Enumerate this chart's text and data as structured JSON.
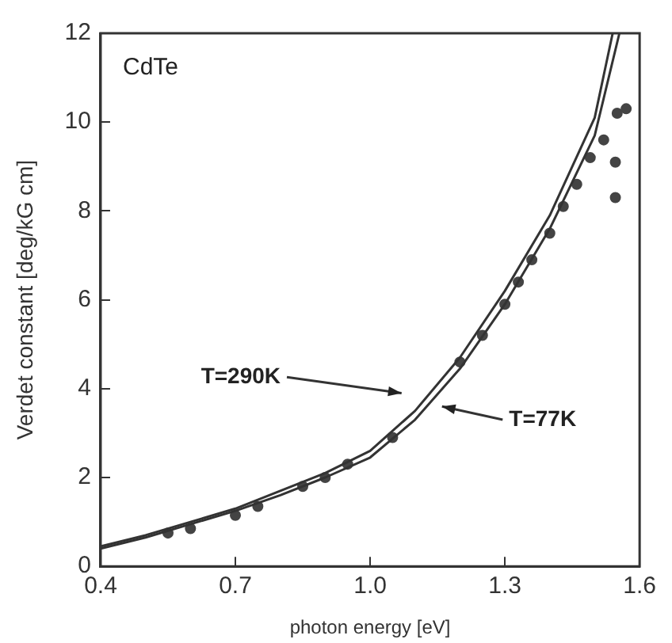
{
  "chart_data": {
    "type": "line",
    "xlabel": "photon energy [eV]",
    "ylabel": "Verdet constant [deg/kG cm]",
    "xlim": [
      0.4,
      1.6
    ],
    "xticks": [
      0.4,
      0.7,
      {
        "value": 1,
        "label": "1.0"
      },
      1.3,
      1.6
    ],
    "ylim": [
      0,
      12
    ],
    "yticks": [
      0,
      2,
      4,
      6,
      8,
      10,
      12
    ],
    "annotations": [
      "CdTe",
      "T=290K",
      "T=77K"
    ],
    "series": [
      {
        "color": "#333333",
        "marker": "none",
        "x": [
          0.4,
          0.5,
          0.6,
          0.7,
          0.8,
          0.9,
          1.0,
          1.1,
          1.2,
          1.3,
          1.4,
          1.5,
          1.54
        ],
        "values": [
          0.45,
          0.7,
          1.0,
          1.3,
          1.7,
          2.1,
          2.6,
          3.5,
          4.7,
          6.2,
          7.9,
          10.1,
          12
        ]
      },
      {
        "color": "#333333",
        "marker": "none",
        "x": [
          0.4,
          0.5,
          0.6,
          0.7,
          0.8,
          0.9,
          1.0,
          1.1,
          1.2,
          1.3,
          1.4,
          1.5,
          1.555
        ],
        "values": [
          0.4,
          0.65,
          0.95,
          1.25,
          1.6,
          2.0,
          2.45,
          3.3,
          4.45,
          5.9,
          7.6,
          9.7,
          12
        ]
      },
      {
        "type": "scatter",
        "color": "#444444",
        "marker": "circle",
        "x": [
          0.55,
          0.6,
          0.7,
          0.75,
          0.85,
          0.9,
          0.95,
          1.05,
          1.2,
          1.25,
          1.3,
          1.33,
          1.36,
          1.4,
          1.43,
          1.46,
          1.49,
          1.52,
          1.55,
          1.57,
          1.546,
          1.546
        ],
        "values": [
          0.75,
          0.85,
          1.15,
          1.35,
          1.8,
          2.0,
          2.3,
          2.9,
          4.6,
          5.2,
          5.9,
          6.4,
          6.9,
          7.5,
          8.1,
          8.6,
          9.2,
          9.6,
          10.2,
          10.3,
          9.1,
          8.3
        ]
      }
    ]
  }
}
